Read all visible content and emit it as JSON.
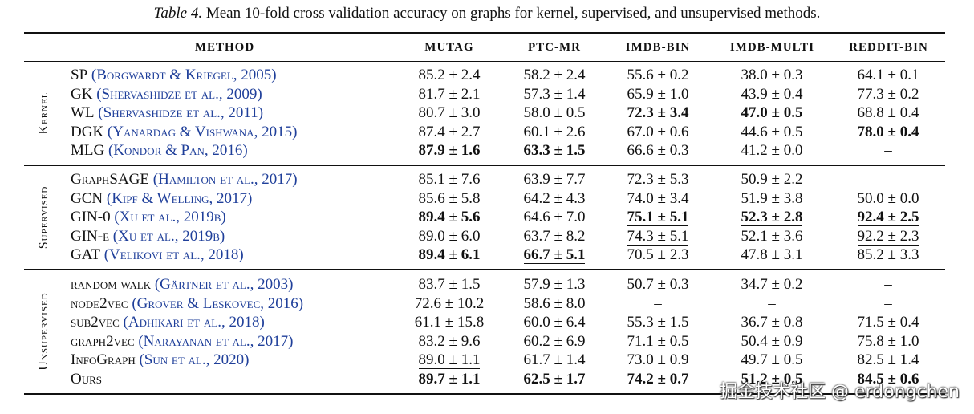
{
  "caption": {
    "label": "Table 4.",
    "text": "Mean 10-fold cross validation accuracy on graphs for kernel, supervised, and unsupervised methods."
  },
  "headers": [
    "METHOD",
    "MUTAG",
    "PTC-MR",
    "IMDB-BIN",
    "IMDB-MULTI",
    "REDDIT-BIN"
  ],
  "groups": [
    {
      "label": "Kernel",
      "rows": [
        {
          "name": "SP",
          "cite": "(Borgwardt & Kriegel, 2005)",
          "values": [
            "85.2 ± 2.4",
            "58.2 ± 2.4",
            "55.6 ± 0.2",
            "38.0 ± 0.3",
            "64.1 ± 0.1"
          ],
          "bold": [
            false,
            false,
            false,
            false,
            false
          ],
          "underline": [
            false,
            false,
            false,
            false,
            false
          ]
        },
        {
          "name": "GK",
          "cite": "(Shervashidze et al., 2009)",
          "values": [
            "81.7 ± 2.1",
            "57.3 ± 1.4",
            "65.9 ± 1.0",
            "43.9 ± 0.4",
            "77.3 ± 0.2"
          ],
          "bold": [
            false,
            false,
            false,
            false,
            false
          ],
          "underline": [
            false,
            false,
            false,
            false,
            false
          ]
        },
        {
          "name": "WL",
          "cite": "(Shervashidze et al., 2011)",
          "values": [
            "80.7 ± 3.0",
            "58.0 ± 0.5",
            "72.3 ± 3.4",
            "47.0 ± 0.5",
            "68.8 ± 0.4"
          ],
          "bold": [
            false,
            false,
            true,
            true,
            false
          ],
          "underline": [
            false,
            false,
            false,
            false,
            false
          ]
        },
        {
          "name": "DGK",
          "cite": "(Yanardag & Vishwana, 2015)",
          "values": [
            "87.4 ± 2.7",
            "60.1 ± 2.6",
            "67.0 ± 0.6",
            "44.6 ± 0.5",
            "78.0 ± 0.4"
          ],
          "bold": [
            false,
            false,
            false,
            false,
            true
          ],
          "underline": [
            false,
            false,
            false,
            false,
            false
          ]
        },
        {
          "name": "MLG",
          "cite": "(Kondor & Pan, 2016)",
          "values": [
            "87.9 ± 1.6",
            "63.3 ± 1.5",
            "66.6 ± 0.3",
            "41.2 ± 0.0",
            "–"
          ],
          "bold": [
            true,
            true,
            false,
            false,
            false
          ],
          "underline": [
            false,
            false,
            false,
            false,
            false
          ]
        }
      ]
    },
    {
      "label": "Supervised",
      "rows": [
        {
          "name": "GraphSAGE",
          "cite": "(Hamilton et al., 2017)",
          "values": [
            "85.1 ± 7.6",
            "63.9 ± 7.7",
            "72.3 ± 5.3",
            "50.9 ± 2.2",
            ""
          ],
          "bold": [
            false,
            false,
            false,
            false,
            false
          ],
          "underline": [
            false,
            false,
            false,
            false,
            false
          ]
        },
        {
          "name": "GCN",
          "cite": "(Kipf & Welling, 2017)",
          "values": [
            "85.6 ± 5.8",
            "64.2 ± 4.3",
            "74.0 ± 3.4",
            "51.9 ± 3.8",
            "50.0 ± 0.0"
          ],
          "bold": [
            false,
            false,
            false,
            false,
            false
          ],
          "underline": [
            false,
            false,
            false,
            false,
            false
          ]
        },
        {
          "name": "GIN-0",
          "cite": "(Xu et al., 2019b)",
          "values": [
            "89.4 ± 5.6",
            "64.6 ± 7.0",
            "75.1 ± 5.1",
            "52.3 ± 2.8",
            "92.4 ± 2.5"
          ],
          "bold": [
            true,
            false,
            true,
            true,
            true
          ],
          "underline": [
            false,
            false,
            true,
            true,
            true
          ]
        },
        {
          "name": "GIN-ϵ",
          "cite": "(Xu et al., 2019b)",
          "values": [
            "89.0 ± 6.0",
            "63.7 ± 8.2",
            "74.3 ± 5.1",
            "52.1 ± 3.6",
            "92.2 ± 2.3"
          ],
          "bold": [
            false,
            false,
            false,
            false,
            false
          ],
          "underline": [
            false,
            false,
            true,
            false,
            true
          ]
        },
        {
          "name": "GAT",
          "cite": "(Velikovi et al., 2018)",
          "values": [
            "89.4 ± 6.1",
            "66.7 ± 5.1",
            "70.5 ± 2.3",
            "47.8 ± 3.1",
            "85.2 ± 3.3"
          ],
          "bold": [
            true,
            true,
            false,
            false,
            false
          ],
          "underline": [
            false,
            true,
            false,
            false,
            false
          ]
        }
      ]
    },
    {
      "label": "Unsupervised",
      "rows": [
        {
          "name": "random walk",
          "cite": "(Gärtner et al., 2003)",
          "values": [
            "83.7 ± 1.5",
            "57.9 ± 1.3",
            "50.7 ± 0.3",
            "34.7 ± 0.2",
            "–"
          ],
          "bold": [
            false,
            false,
            false,
            false,
            false
          ],
          "underline": [
            false,
            false,
            false,
            false,
            false
          ]
        },
        {
          "name": "node2vec",
          "cite": "(Grover & Leskovec, 2016)",
          "values": [
            "72.6 ± 10.2",
            "58.6 ± 8.0",
            "–",
            "–",
            "–"
          ],
          "bold": [
            false,
            false,
            false,
            false,
            false
          ],
          "underline": [
            false,
            false,
            false,
            false,
            false
          ]
        },
        {
          "name": "sub2vec",
          "cite": "(Adhikari et al., 2018)",
          "values": [
            "61.1 ± 15.8",
            "60.0 ± 6.4",
            "55.3 ± 1.5",
            "36.7 ± 0.8",
            "71.5 ± 0.4"
          ],
          "bold": [
            false,
            false,
            false,
            false,
            false
          ],
          "underline": [
            false,
            false,
            false,
            false,
            false
          ]
        },
        {
          "name": "graph2vec",
          "cite": "(Narayanan et al., 2017)",
          "values": [
            "83.2 ± 9.6",
            "60.2 ± 6.9",
            "71.1 ± 0.5",
            "50.4 ± 0.9",
            "75.8 ± 1.0"
          ],
          "bold": [
            false,
            false,
            false,
            false,
            false
          ],
          "underline": [
            false,
            false,
            false,
            false,
            false
          ]
        },
        {
          "name": "InfoGraph",
          "cite": "(Sun et al., 2020)",
          "values": [
            "89.0 ± 1.1",
            "61.7 ± 1.4",
            "73.0 ± 0.9",
            "49.7 ± 0.5",
            "82.5 ± 1.4"
          ],
          "bold": [
            false,
            false,
            false,
            false,
            false
          ],
          "underline": [
            true,
            false,
            false,
            false,
            false
          ]
        },
        {
          "name": "Ours",
          "cite": "",
          "values": [
            "89.7 ± 1.1",
            "62.5 ± 1.7",
            "74.2 ± 0.7",
            "51.2 ± 0.5",
            "84.5 ± 0.6"
          ],
          "bold": [
            true,
            true,
            true,
            true,
            true
          ],
          "underline": [
            true,
            false,
            false,
            true,
            false
          ]
        }
      ]
    }
  ],
  "watermark": "掘金技术社区 @ erdongchen"
}
